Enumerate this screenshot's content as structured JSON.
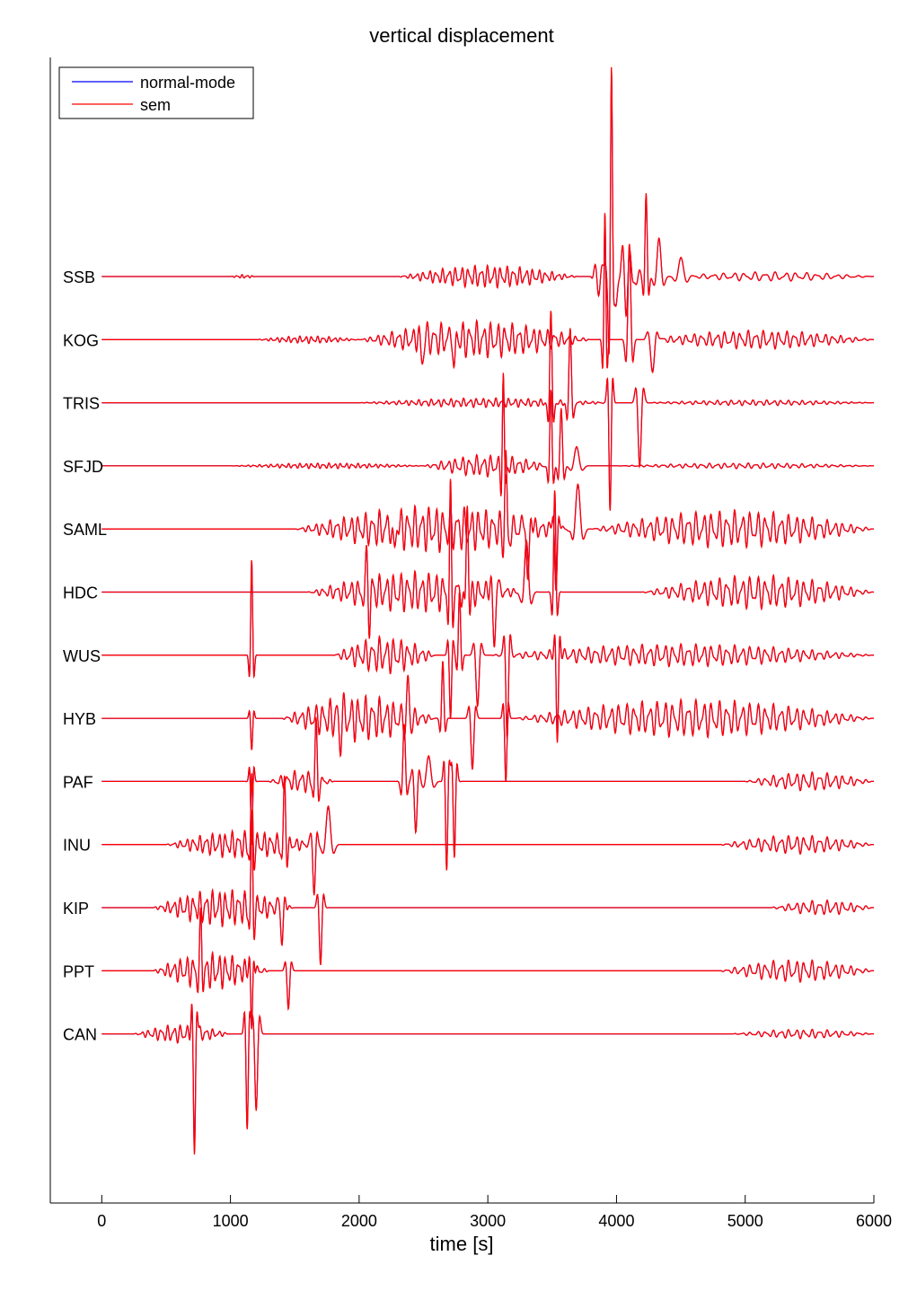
{
  "chart_data": {
    "type": "line",
    "title": "vertical displacement",
    "xlabel": "time [s]",
    "ylabel": "",
    "xlim": [
      -400,
      6000
    ],
    "xticks": [
      0,
      1000,
      2000,
      3000,
      4000,
      5000,
      6000
    ],
    "grid": false,
    "legend": {
      "placement": "top-left",
      "entries": [
        {
          "name": "normal-mode",
          "color": "#0000ff"
        },
        {
          "name": "sem",
          "color": "#ff0000"
        }
      ]
    },
    "stations": [
      "SSB",
      "KOG",
      "TRIS",
      "SFJD",
      "SAML",
      "HDC",
      "WUS",
      "HYB",
      "PAF",
      "INU",
      "KIP",
      "PPT",
      "CAN"
    ],
    "traces": [
      {
        "station": "SSB",
        "segments": [
          {
            "t0": 1000,
            "t1": 1200,
            "amp": 0.02,
            "period": 40
          },
          {
            "t0": 2300,
            "t1": 3700,
            "amp": 0.12,
            "period": 50
          },
          {
            "t0": 3800,
            "t1": 4200,
            "amp": 0.5,
            "period": 70
          },
          {
            "t0": 4400,
            "t1": 6000,
            "amp": 0.05,
            "period": 80
          }
        ],
        "pulses": [
          {
            "t": 3960,
            "amp": 2.8,
            "width": 12
          },
          {
            "t": 4230,
            "amp": 1.3,
            "width": 14
          },
          {
            "t": 4330,
            "amp": 0.6,
            "width": 25
          },
          {
            "t": 4500,
            "amp": 0.3,
            "width": 30
          }
        ]
      },
      {
        "station": "KOG",
        "segments": [
          {
            "t0": 1200,
            "t1": 2000,
            "amp": 0.04,
            "period": 45
          },
          {
            "t0": 2000,
            "t1": 3800,
            "amp": 0.2,
            "period": 55
          },
          {
            "t0": 4200,
            "t1": 6000,
            "amp": 0.1,
            "period": 60
          }
        ],
        "pulses": [
          {
            "t": 2490,
            "amp": -0.35,
            "width": 20
          },
          {
            "t": 2740,
            "amp": -0.6,
            "width": 14
          },
          {
            "t": 3910,
            "amp": 2.0,
            "width": 12
          },
          {
            "t": 4100,
            "amp": 1.5,
            "width": 18
          },
          {
            "t": 4280,
            "amp": -0.5,
            "width": 25
          }
        ]
      },
      {
        "station": "TRIS",
        "segments": [
          {
            "t0": 2000,
            "t1": 4000,
            "amp": 0.05,
            "period": 50
          },
          {
            "t0": 4200,
            "t1": 6000,
            "amp": 0.03,
            "period": 55
          }
        ],
        "pulses": [
          {
            "t": 3490,
            "amp": 1.5,
            "width": 14
          },
          {
            "t": 3640,
            "amp": 1.2,
            "width": 16
          },
          {
            "t": 3950,
            "amp": -1.7,
            "width": 14
          },
          {
            "t": 4180,
            "amp": -1.0,
            "width": 20
          }
        ]
      },
      {
        "station": "SFJD",
        "segments": [
          {
            "t0": 1000,
            "t1": 2500,
            "amp": 0.03,
            "period": 45
          },
          {
            "t0": 2500,
            "t1": 3500,
            "amp": 0.12,
            "period": 55
          },
          {
            "t0": 4000,
            "t1": 6000,
            "amp": 0.03,
            "period": 60
          }
        ],
        "pulses": [
          {
            "t": 3120,
            "amp": 1.4,
            "width": 12
          },
          {
            "t": 3490,
            "amp": 1.2,
            "width": 14
          },
          {
            "t": 3570,
            "amp": 0.9,
            "width": 16
          },
          {
            "t": 3690,
            "amp": 0.3,
            "width": 30
          }
        ]
      },
      {
        "station": "SAML",
        "segments": [
          {
            "t0": 1500,
            "t1": 3700,
            "amp": 0.25,
            "period": 55
          },
          {
            "t0": 3800,
            "t1": 6000,
            "amp": 0.2,
            "period": 60
          }
        ],
        "pulses": [
          {
            "t": 2270,
            "amp": -0.4,
            "width": 18
          },
          {
            "t": 3140,
            "amp": 1.2,
            "width": 14
          },
          {
            "t": 3310,
            "amp": -0.9,
            "width": 18
          },
          {
            "t": 3530,
            "amp": -1.0,
            "width": 16
          },
          {
            "t": 3700,
            "amp": 0.7,
            "width": 28
          }
        ]
      },
      {
        "station": "HDC",
        "segments": [
          {
            "t0": 1600,
            "t1": 3300,
            "amp": 0.22,
            "period": 55
          },
          {
            "t0": 4200,
            "t1": 6000,
            "amp": 0.18,
            "period": 60
          }
        ],
        "pulses": [
          {
            "t": 2060,
            "amp": 0.5,
            "width": 16
          },
          {
            "t": 2080,
            "amp": -0.5,
            "width": 14
          },
          {
            "t": 2710,
            "amp": 1.5,
            "width": 12
          },
          {
            "t": 2840,
            "amp": 1.5,
            "width": 14
          },
          {
            "t": 3050,
            "amp": -0.9,
            "width": 18
          },
          {
            "t": 3300,
            "amp": 0.8,
            "width": 25
          },
          {
            "t": 3520,
            "amp": 1.6,
            "width": 14
          }
        ]
      },
      {
        "station": "WUS",
        "segments": [
          {
            "t0": 1800,
            "t1": 2600,
            "amp": 0.2,
            "period": 55
          },
          {
            "t0": 3000,
            "t1": 6000,
            "amp": 0.12,
            "period": 60
          }
        ],
        "pulses": [
          {
            "t": 1165,
            "amp": 1.5,
            "width": 12
          },
          {
            "t": 2710,
            "amp": -1.0,
            "width": 14
          },
          {
            "t": 2780,
            "amp": 1.0,
            "width": 14
          },
          {
            "t": 2920,
            "amp": -0.8,
            "width": 20
          },
          {
            "t": 3150,
            "amp": -1.3,
            "width": 16
          },
          {
            "t": 3540,
            "amp": -1.4,
            "width": 14
          }
        ]
      },
      {
        "station": "HYB",
        "segments": [
          {
            "t0": 1400,
            "t1": 2600,
            "amp": 0.25,
            "period": 55
          },
          {
            "t0": 3200,
            "t1": 6000,
            "amp": 0.2,
            "period": 60
          }
        ],
        "pulses": [
          {
            "t": 1165,
            "amp": -0.5,
            "width": 12
          },
          {
            "t": 1850,
            "amp": -0.4,
            "width": 16
          },
          {
            "t": 2380,
            "amp": 0.6,
            "width": 16
          },
          {
            "t": 2650,
            "amp": 0.9,
            "width": 14
          },
          {
            "t": 2880,
            "amp": -0.8,
            "width": 18
          },
          {
            "t": 3140,
            "amp": -1.0,
            "width": 14
          }
        ]
      },
      {
        "station": "PAF",
        "segments": [
          {
            "t0": 1300,
            "t1": 1800,
            "amp": 0.12,
            "period": 55
          },
          {
            "t0": 5000,
            "t1": 6000,
            "amp": 0.1,
            "period": 60
          }
        ],
        "pulses": [
          {
            "t": 1165,
            "amp": -1.0,
            "width": 12
          },
          {
            "t": 1665,
            "amp": 0.9,
            "width": 14
          },
          {
            "t": 2350,
            "amp": 0.9,
            "width": 16
          },
          {
            "t": 2440,
            "amp": -0.8,
            "width": 18
          },
          {
            "t": 2540,
            "amp": 0.4,
            "width": 28
          },
          {
            "t": 2680,
            "amp": -1.4,
            "width": 14
          },
          {
            "t": 2740,
            "amp": -1.2,
            "width": 14
          }
        ]
      },
      {
        "station": "INU",
        "segments": [
          {
            "t0": 500,
            "t1": 1700,
            "amp": 0.15,
            "period": 50
          },
          {
            "t0": 4800,
            "t1": 6000,
            "amp": 0.1,
            "period": 60
          }
        ],
        "pulses": [
          {
            "t": 1165,
            "amp": 1.0,
            "width": 12
          },
          {
            "t": 1420,
            "amp": 1.0,
            "width": 14
          },
          {
            "t": 1650,
            "amp": -0.8,
            "width": 16
          },
          {
            "t": 1760,
            "amp": 0.6,
            "width": 28
          }
        ]
      },
      {
        "station": "KIP",
        "segments": [
          {
            "t0": 400,
            "t1": 1500,
            "amp": 0.2,
            "period": 50
          },
          {
            "t0": 5200,
            "t1": 6000,
            "amp": 0.08,
            "period": 60
          }
        ],
        "pulses": [
          {
            "t": 1165,
            "amp": 1.4,
            "width": 12
          },
          {
            "t": 1400,
            "amp": -0.6,
            "width": 16
          },
          {
            "t": 1700,
            "amp": -0.9,
            "width": 16
          }
        ]
      },
      {
        "station": "PPT",
        "segments": [
          {
            "t0": 400,
            "t1": 1300,
            "amp": 0.2,
            "period": 50
          },
          {
            "t0": 4800,
            "t1": 6000,
            "amp": 0.12,
            "period": 60
          }
        ],
        "pulses": [
          {
            "t": 770,
            "amp": 0.8,
            "width": 14
          },
          {
            "t": 1165,
            "amp": -1.0,
            "width": 12
          },
          {
            "t": 1450,
            "amp": -0.6,
            "width": 16
          }
        ]
      },
      {
        "station": "CAN",
        "segments": [
          {
            "t0": 250,
            "t1": 1000,
            "amp": 0.1,
            "period": 50
          },
          {
            "t0": 4900,
            "t1": 6000,
            "amp": 0.05,
            "period": 60
          }
        ],
        "pulses": [
          {
            "t": 720,
            "amp": -1.9,
            "width": 14
          },
          {
            "t": 1130,
            "amp": -1.5,
            "width": 14
          },
          {
            "t": 1200,
            "amp": -1.2,
            "width": 18
          }
        ]
      }
    ]
  }
}
